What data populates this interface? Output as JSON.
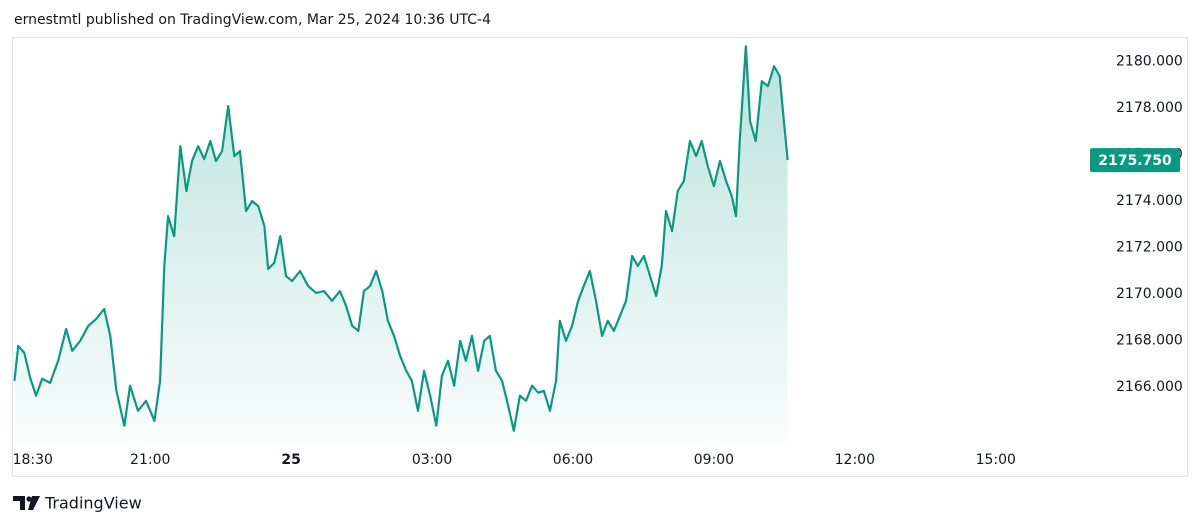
{
  "header": {
    "text": "ernestmtl published on TradingView.com, Mar 25, 2024 10:36 UTC-4"
  },
  "footer": {
    "brand": "TradingView"
  },
  "chart_data": {
    "type": "area",
    "color": "#089981",
    "last_price_label": "2175.750",
    "xlim": [
      18.1,
      40.9
    ],
    "ylim": [
      2163.5,
      2181
    ],
    "xticks": [
      {
        "value": 18.5,
        "label": "18:30"
      },
      {
        "value": 21,
        "label": "21:00"
      },
      {
        "value": 24,
        "label": "25"
      },
      {
        "value": 27,
        "label": "03:00"
      },
      {
        "value": 30,
        "label": "06:00"
      },
      {
        "value": 33,
        "label": "09:00"
      },
      {
        "value": 36,
        "label": "12:00"
      },
      {
        "value": 39,
        "label": "15:00"
      }
    ],
    "yticks": [
      {
        "value": 2166,
        "label": "2166.000"
      },
      {
        "value": 2168,
        "label": "2168.000"
      },
      {
        "value": 2170,
        "label": "2170.000"
      },
      {
        "value": 2172,
        "label": "2172.000"
      },
      {
        "value": 2174,
        "label": "2174.000"
      },
      {
        "value": 2176,
        "label": "2176.000"
      },
      {
        "value": 2178,
        "label": "2178.000"
      },
      {
        "value": 2180,
        "label": "2180.000"
      }
    ],
    "x": [
      18.11,
      18.19,
      18.32,
      18.45,
      18.57,
      18.7,
      18.87,
      19.04,
      19.21,
      19.34,
      19.51,
      19.68,
      19.85,
      20.02,
      20.15,
      20.28,
      20.45,
      20.57,
      20.74,
      20.91,
      21.09,
      21.21,
      21.3,
      21.38,
      21.51,
      21.64,
      21.77,
      21.89,
      22.02,
      22.15,
      22.28,
      22.4,
      22.53,
      22.66,
      22.79,
      22.91,
      23.04,
      23.17,
      23.3,
      23.43,
      23.51,
      23.64,
      23.77,
      23.89,
      24.02,
      24.19,
      24.36,
      24.53,
      24.7,
      24.87,
      25.04,
      25.17,
      25.3,
      25.43,
      25.55,
      25.68,
      25.81,
      25.94,
      26.06,
      26.19,
      26.32,
      26.45,
      26.57,
      26.7,
      26.83,
      26.96,
      27.09,
      27.21,
      27.34,
      27.47,
      27.6,
      27.72,
      27.85,
      27.98,
      28.11,
      28.23,
      28.36,
      28.49,
      28.62,
      28.74,
      28.87,
      29.0,
      29.13,
      29.26,
      29.38,
      29.51,
      29.64,
      29.72,
      29.85,
      29.98,
      30.11,
      30.23,
      30.36,
      30.49,
      30.62,
      30.74,
      30.87,
      31.0,
      31.13,
      31.26,
      31.38,
      31.51,
      31.64,
      31.77,
      31.89,
      31.98,
      32.11,
      32.23,
      32.36,
      32.49,
      32.62,
      32.74,
      32.87,
      33.0,
      33.13,
      33.26,
      33.38,
      33.47,
      33.55,
      33.68,
      33.77,
      33.89,
      34.02,
      34.15,
      34.28,
      34.4,
      34.49,
      34.57
    ],
    "values": [
      2166.26,
      2167.76,
      2167.46,
      2166.35,
      2165.62,
      2166.35,
      2166.17,
      2167.12,
      2168.49,
      2167.55,
      2167.98,
      2168.62,
      2168.92,
      2169.35,
      2168.19,
      2165.83,
      2164.33,
      2166.05,
      2164.97,
      2165.4,
      2164.54,
      2166.26,
      2171.2,
      2173.34,
      2172.48,
      2176.35,
      2174.42,
      2175.71,
      2176.35,
      2175.79,
      2176.57,
      2175.71,
      2176.14,
      2178.07,
      2175.92,
      2176.14,
      2173.56,
      2173.99,
      2173.77,
      2172.92,
      2171.07,
      2171.33,
      2172.48,
      2170.77,
      2170.55,
      2170.98,
      2170.34,
      2170.04,
      2170.12,
      2169.7,
      2170.12,
      2169.48,
      2168.62,
      2168.41,
      2170.12,
      2170.34,
      2170.98,
      2170.12,
      2168.84,
      2168.19,
      2167.33,
      2166.69,
      2166.26,
      2164.97,
      2166.69,
      2165.62,
      2164.33,
      2166.48,
      2167.12,
      2166.05,
      2167.98,
      2167.12,
      2168.19,
      2166.69,
      2167.98,
      2168.19,
      2166.69,
      2166.26,
      2165.19,
      2164.11,
      2165.62,
      2165.4,
      2166.05,
      2165.75,
      2165.83,
      2164.97,
      2166.26,
      2168.84,
      2167.98,
      2168.62,
      2169.7,
      2170.34,
      2170.98,
      2169.7,
      2168.19,
      2168.84,
      2168.41,
      2169.05,
      2169.7,
      2171.63,
      2171.2,
      2171.63,
      2170.77,
      2169.91,
      2171.2,
      2173.56,
      2172.7,
      2174.42,
      2174.85,
      2176.57,
      2175.92,
      2176.57,
      2175.49,
      2174.63,
      2175.71,
      2174.85,
      2174.2,
      2173.34,
      2176.57,
      2180.64,
      2177.42,
      2176.57,
      2179.14,
      2178.93,
      2179.79,
      2179.36,
      2177.42,
      2175.75
    ]
  }
}
